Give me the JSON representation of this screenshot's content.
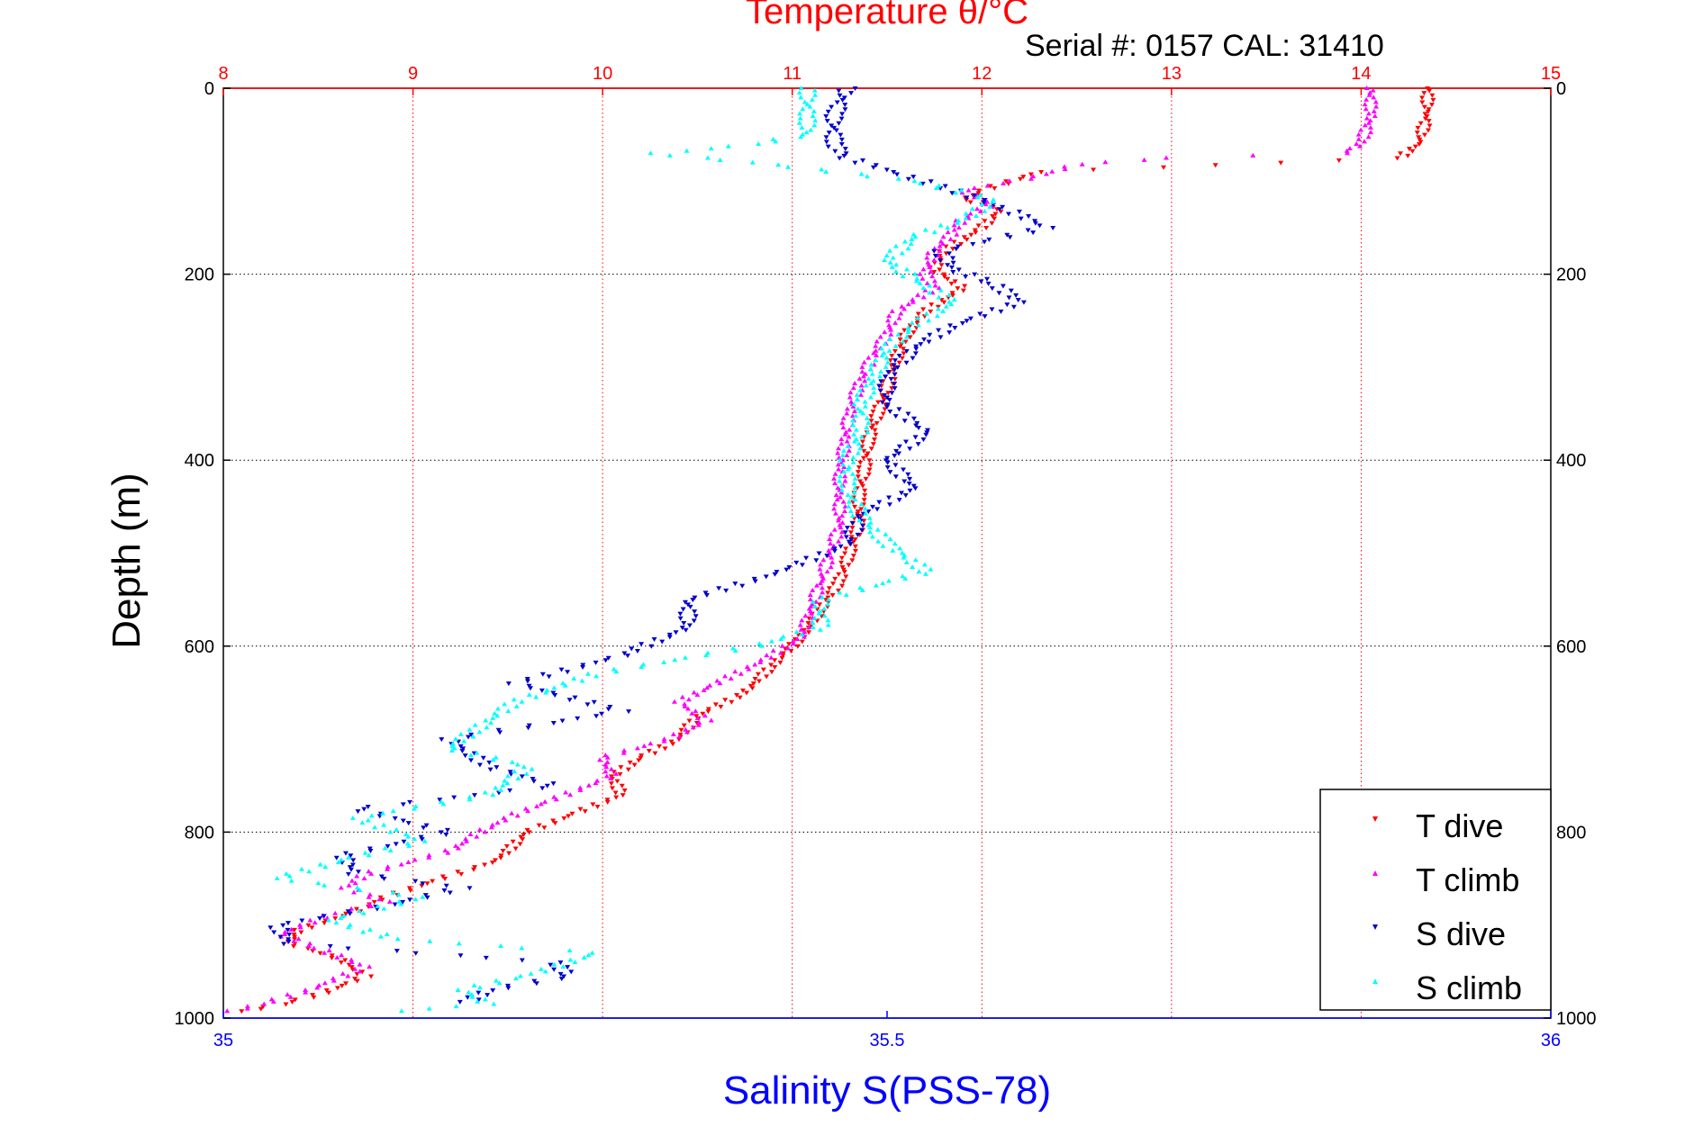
{
  "chart_data": {
    "type": "scatter",
    "title": "Temperature θ/°C",
    "serial_label": "Serial #: 0157  CAL: 31410",
    "ylabel": "Depth (m)",
    "xlabel_bottom": "Salinity S(PSS-78)",
    "grid": true,
    "legend_position": "bottom-right",
    "colors": {
      "temperature_axis": "#ff0000",
      "salinity_axis": "#0000ff",
      "t_dive": "#ff0000",
      "t_climb": "#ff00ff",
      "s_dive": "#0000cc",
      "s_climb": "#00ffff"
    },
    "axes": {
      "temperature": {
        "range": [
          8,
          15
        ],
        "ticks": [
          "8",
          "9",
          "10",
          "11",
          "12",
          "13",
          "14",
          "15"
        ]
      },
      "salinity": {
        "range": [
          35,
          36
        ],
        "ticks": [
          "35",
          "35.5",
          "36"
        ]
      },
      "depth": {
        "range": [
          0,
          1000
        ],
        "reversed": true,
        "ticks": [
          "0",
          "200",
          "400",
          "600",
          "800",
          "1000"
        ]
      }
    },
    "series": [
      {
        "name": "T dive",
        "axis": "temperature",
        "marker": "triangle-down",
        "points": [
          [
            14.35,
            0
          ],
          [
            14.35,
            30
          ],
          [
            14.3,
            60
          ],
          [
            14.2,
            75
          ],
          [
            12.3,
            90
          ],
          [
            12.0,
            110
          ],
          [
            11.9,
            120
          ],
          [
            12.1,
            130
          ],
          [
            12.0,
            150
          ],
          [
            11.8,
            175
          ],
          [
            11.75,
            195
          ],
          [
            11.9,
            215
          ],
          [
            11.7,
            240
          ],
          [
            11.6,
            265
          ],
          [
            11.55,
            290
          ],
          [
            11.5,
            320
          ],
          [
            11.45,
            350
          ],
          [
            11.4,
            380
          ],
          [
            11.38,
            410
          ],
          [
            11.35,
            440
          ],
          [
            11.35,
            470
          ],
          [
            11.3,
            500
          ],
          [
            11.25,
            530
          ],
          [
            11.15,
            560
          ],
          [
            11.05,
            590
          ],
          [
            10.9,
            620
          ],
          [
            10.75,
            650
          ],
          [
            10.5,
            675
          ],
          [
            10.4,
            700
          ],
          [
            10.2,
            720
          ],
          [
            10.05,
            740
          ],
          [
            10.1,
            760
          ],
          [
            9.85,
            780
          ],
          [
            9.6,
            800
          ],
          [
            9.45,
            830
          ],
          [
            9.15,
            850
          ],
          [
            8.85,
            870
          ],
          [
            8.7,
            885
          ],
          [
            8.4,
            905
          ],
          [
            8.35,
            920
          ],
          [
            8.6,
            935
          ],
          [
            8.75,
            955
          ],
          [
            8.5,
            975
          ],
          [
            8.3,
            985
          ],
          [
            8.05,
            995
          ]
        ]
      },
      {
        "name": "T climb",
        "axis": "temperature",
        "marker": "triangle-up",
        "points": [
          [
            14.05,
            0
          ],
          [
            14.05,
            30
          ],
          [
            14.0,
            60
          ],
          [
            13.9,
            70
          ],
          [
            13.0,
            75
          ],
          [
            12.5,
            82
          ],
          [
            12.3,
            95
          ],
          [
            11.9,
            110
          ],
          [
            12.05,
            125
          ],
          [
            11.9,
            140
          ],
          [
            11.85,
            155
          ],
          [
            11.75,
            175
          ],
          [
            11.7,
            200
          ],
          [
            11.75,
            215
          ],
          [
            11.55,
            240
          ],
          [
            11.5,
            265
          ],
          [
            11.42,
            290
          ],
          [
            11.35,
            320
          ],
          [
            11.3,
            350
          ],
          [
            11.28,
            380
          ],
          [
            11.25,
            410
          ],
          [
            11.25,
            440
          ],
          [
            11.25,
            470
          ],
          [
            11.2,
            500
          ],
          [
            11.15,
            530
          ],
          [
            11.1,
            560
          ],
          [
            11.05,
            590
          ],
          [
            10.85,
            615
          ],
          [
            10.6,
            640
          ],
          [
            10.4,
            660
          ],
          [
            10.55,
            680
          ],
          [
            10.35,
            700
          ],
          [
            10.0,
            720
          ],
          [
            10.05,
            740
          ],
          [
            9.8,
            760
          ],
          [
            9.55,
            780
          ],
          [
            9.35,
            800
          ],
          [
            9.2,
            820
          ],
          [
            8.75,
            845
          ],
          [
            8.65,
            860
          ],
          [
            8.85,
            875
          ],
          [
            8.55,
            890
          ],
          [
            8.3,
            910
          ],
          [
            8.5,
            925
          ],
          [
            8.75,
            945
          ],
          [
            8.45,
            970
          ],
          [
            8.2,
            985
          ],
          [
            8.0,
            995
          ]
        ]
      },
      {
        "name": "S dive",
        "axis": "salinity",
        "marker": "triangle-down",
        "points": [
          [
            35.47,
            0
          ],
          [
            35.46,
            30
          ],
          [
            35.46,
            60
          ],
          [
            35.47,
            75
          ],
          [
            35.55,
            110
          ],
          [
            35.59,
            130
          ],
          [
            35.62,
            150
          ],
          [
            35.54,
            175
          ],
          [
            35.55,
            195
          ],
          [
            35.58,
            210
          ],
          [
            35.6,
            230
          ],
          [
            35.55,
            255
          ],
          [
            35.52,
            280
          ],
          [
            35.5,
            310
          ],
          [
            35.5,
            340
          ],
          [
            35.53,
            370
          ],
          [
            35.5,
            400
          ],
          [
            35.52,
            430
          ],
          [
            35.48,
            460
          ],
          [
            35.47,
            490
          ],
          [
            35.42,
            520
          ],
          [
            35.35,
            550
          ],
          [
            35.35,
            580
          ],
          [
            35.3,
            610
          ],
          [
            35.22,
            640
          ],
          [
            35.3,
            670
          ],
          [
            35.17,
            700
          ],
          [
            35.2,
            730
          ],
          [
            35.25,
            750
          ],
          [
            35.1,
            775
          ],
          [
            35.17,
            800
          ],
          [
            35.09,
            825
          ],
          [
            35.1,
            845
          ],
          [
            35.18,
            860
          ],
          [
            35.12,
            880
          ],
          [
            35.04,
            900
          ],
          [
            35.05,
            920
          ],
          [
            35.25,
            940
          ],
          [
            35.26,
            955
          ],
          [
            35.2,
            970
          ],
          [
            35.18,
            985
          ]
        ]
      },
      {
        "name": "S climb",
        "axis": "salinity",
        "marker": "triangle-up",
        "points": [
          [
            35.44,
            0
          ],
          [
            35.44,
            30
          ],
          [
            35.44,
            50
          ],
          [
            35.4,
            60
          ],
          [
            35.37,
            65
          ],
          [
            35.32,
            70
          ],
          [
            35.4,
            80
          ],
          [
            35.52,
            100
          ],
          [
            35.58,
            120
          ],
          [
            35.56,
            140
          ],
          [
            35.52,
            160
          ],
          [
            35.5,
            185
          ],
          [
            35.52,
            205
          ],
          [
            35.55,
            230
          ],
          [
            35.52,
            255
          ],
          [
            35.5,
            280
          ],
          [
            35.49,
            310
          ],
          [
            35.48,
            340
          ],
          [
            35.48,
            370
          ],
          [
            35.47,
            400
          ],
          [
            35.47,
            430
          ],
          [
            35.48,
            460
          ],
          [
            35.5,
            490
          ],
          [
            35.53,
            520
          ],
          [
            35.45,
            550
          ],
          [
            35.45,
            580
          ],
          [
            35.4,
            600
          ],
          [
            35.28,
            630
          ],
          [
            35.22,
            660
          ],
          [
            35.19,
            690
          ],
          [
            35.17,
            710
          ],
          [
            35.23,
            730
          ],
          [
            35.2,
            760
          ],
          [
            35.1,
            785
          ],
          [
            35.15,
            810
          ],
          [
            35.09,
            830
          ],
          [
            35.04,
            850
          ],
          [
            35.15,
            870
          ],
          [
            35.08,
            895
          ],
          [
            35.13,
            915
          ],
          [
            35.28,
            930
          ],
          [
            35.24,
            950
          ],
          [
            35.18,
            970
          ],
          [
            35.2,
            985
          ],
          [
            35.11,
            995
          ]
        ]
      }
    ]
  }
}
